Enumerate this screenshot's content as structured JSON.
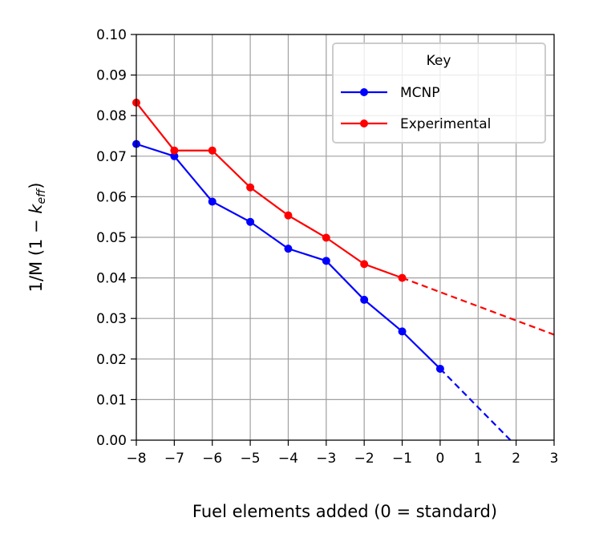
{
  "chart_data": {
    "type": "line",
    "xlabel": "Fuel elements added  (0 = standard)",
    "ylabel_main": "1/M  (1 − ",
    "ylabel_k": "k",
    "ylabel_sub": "eff",
    "ylabel_close": ")",
    "xlim": [
      -8,
      3
    ],
    "ylim": [
      0,
      0.1
    ],
    "x_ticks": [
      -8,
      -7,
      -6,
      -5,
      -4,
      -3,
      -2,
      -1,
      0,
      1,
      2,
      3
    ],
    "x_tick_labels": [
      "−8",
      "−7",
      "−6",
      "−5",
      "−4",
      "−3",
      "−2",
      "−1",
      "0",
      "1",
      "2",
      "3"
    ],
    "y_ticks": [
      0,
      0.01,
      0.02,
      0.03,
      0.04,
      0.05,
      0.06,
      0.07,
      0.08,
      0.09,
      0.1
    ],
    "y_tick_labels": [
      "0.00",
      "0.01",
      "0.02",
      "0.03",
      "0.04",
      "0.05",
      "0.06",
      "0.07",
      "0.08",
      "0.09",
      "0.10"
    ],
    "grid": true,
    "legend_title": "Key",
    "legend_position": "top-right",
    "series": [
      {
        "name": "MCNP",
        "color": "#0000ff",
        "x": [
          -8,
          -7,
          -6,
          -5,
          -4,
          -3,
          -2,
          -1,
          0
        ],
        "y": [
          0.073,
          0.07,
          0.0588,
          0.0538,
          0.0472,
          0.0442,
          0.0346,
          0.0268,
          0.0176
        ],
        "extrapolation": {
          "x": [
            0,
            1.85
          ],
          "y": [
            0.0176,
            0.0
          ]
        }
      },
      {
        "name": "Experimental",
        "color": "#ff0000",
        "x": [
          -8,
          -7,
          -6,
          -5,
          -4,
          -3,
          -2,
          -1
        ],
        "y": [
          0.0832,
          0.0714,
          0.0714,
          0.0623,
          0.0554,
          0.0499,
          0.0434,
          0.04
        ],
        "extrapolation": {
          "x": [
            -1,
            3
          ],
          "y": [
            0.04,
            0.026
          ]
        }
      }
    ]
  }
}
